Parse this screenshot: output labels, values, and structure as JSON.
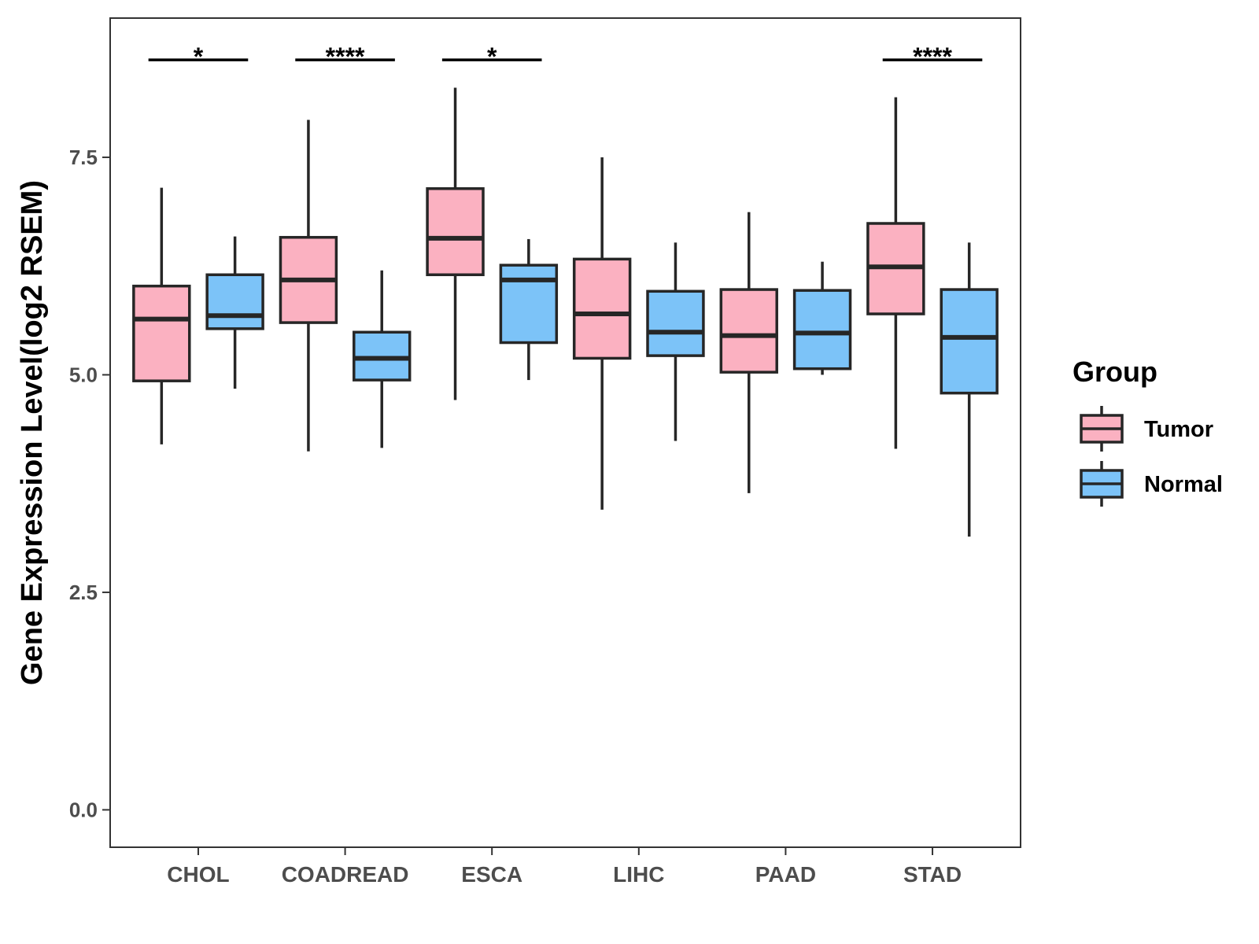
{
  "chart_data": {
    "type": "boxplot",
    "title": "",
    "xlabel": "",
    "ylabel": "Gene Expression Level(log2 RSEM)",
    "ylim": [
      -0.43,
      9.1
    ],
    "yticks": [
      0.0,
      2.5,
      5.0,
      7.5
    ],
    "ytick_labels": [
      "0.0",
      "2.5",
      "5.0",
      "7.5"
    ],
    "categories": [
      "CHOL",
      "COADREAD",
      "ESCA",
      "LIHC",
      "PAAD",
      "STAD"
    ],
    "legend": {
      "title": "Group",
      "position": "right",
      "entries": [
        "Tumor",
        "Normal"
      ]
    },
    "series": [
      {
        "name": "Tumor",
        "color": "#FBB1C1",
        "boxes": [
          {
            "min": 4.2,
            "q1": 4.93,
            "median": 5.64,
            "q3": 6.02,
            "max": 7.15
          },
          {
            "min": 4.12,
            "q1": 5.6,
            "median": 6.09,
            "q3": 6.58,
            "max": 7.93
          },
          {
            "min": 4.71,
            "q1": 6.15,
            "median": 6.57,
            "q3": 7.14,
            "max": 8.3
          },
          {
            "min": 3.45,
            "q1": 5.19,
            "median": 5.7,
            "q3": 6.33,
            "max": 7.5
          },
          {
            "min": 3.64,
            "q1": 5.03,
            "median": 5.45,
            "q3": 5.98,
            "max": 6.87
          },
          {
            "min": 4.15,
            "q1": 5.7,
            "median": 6.24,
            "q3": 6.74,
            "max": 8.19
          }
        ]
      },
      {
        "name": "Normal",
        "color": "#7CC3F8",
        "boxes": [
          {
            "min": 4.84,
            "q1": 5.53,
            "median": 5.68,
            "q3": 6.15,
            "max": 6.59
          },
          {
            "min": 4.16,
            "q1": 4.94,
            "median": 5.19,
            "q3": 5.49,
            "max": 6.2
          },
          {
            "min": 4.94,
            "q1": 5.37,
            "median": 6.09,
            "q3": 6.26,
            "max": 6.56
          },
          {
            "min": 4.24,
            "q1": 5.22,
            "median": 5.49,
            "q3": 5.96,
            "max": 6.52
          },
          {
            "min": 5.0,
            "q1": 5.07,
            "median": 5.48,
            "q3": 5.97,
            "max": 6.3
          },
          {
            "min": 3.14,
            "q1": 4.79,
            "median": 5.43,
            "q3": 5.98,
            "max": 6.52
          }
        ]
      }
    ],
    "significance": [
      {
        "category": "CHOL",
        "label": "*",
        "y": 8.62
      },
      {
        "category": "COADREAD",
        "label": "****",
        "y": 8.62
      },
      {
        "category": "ESCA",
        "label": "*",
        "y": 8.62
      },
      {
        "category": "STAD",
        "label": "****",
        "y": 8.62
      }
    ]
  }
}
